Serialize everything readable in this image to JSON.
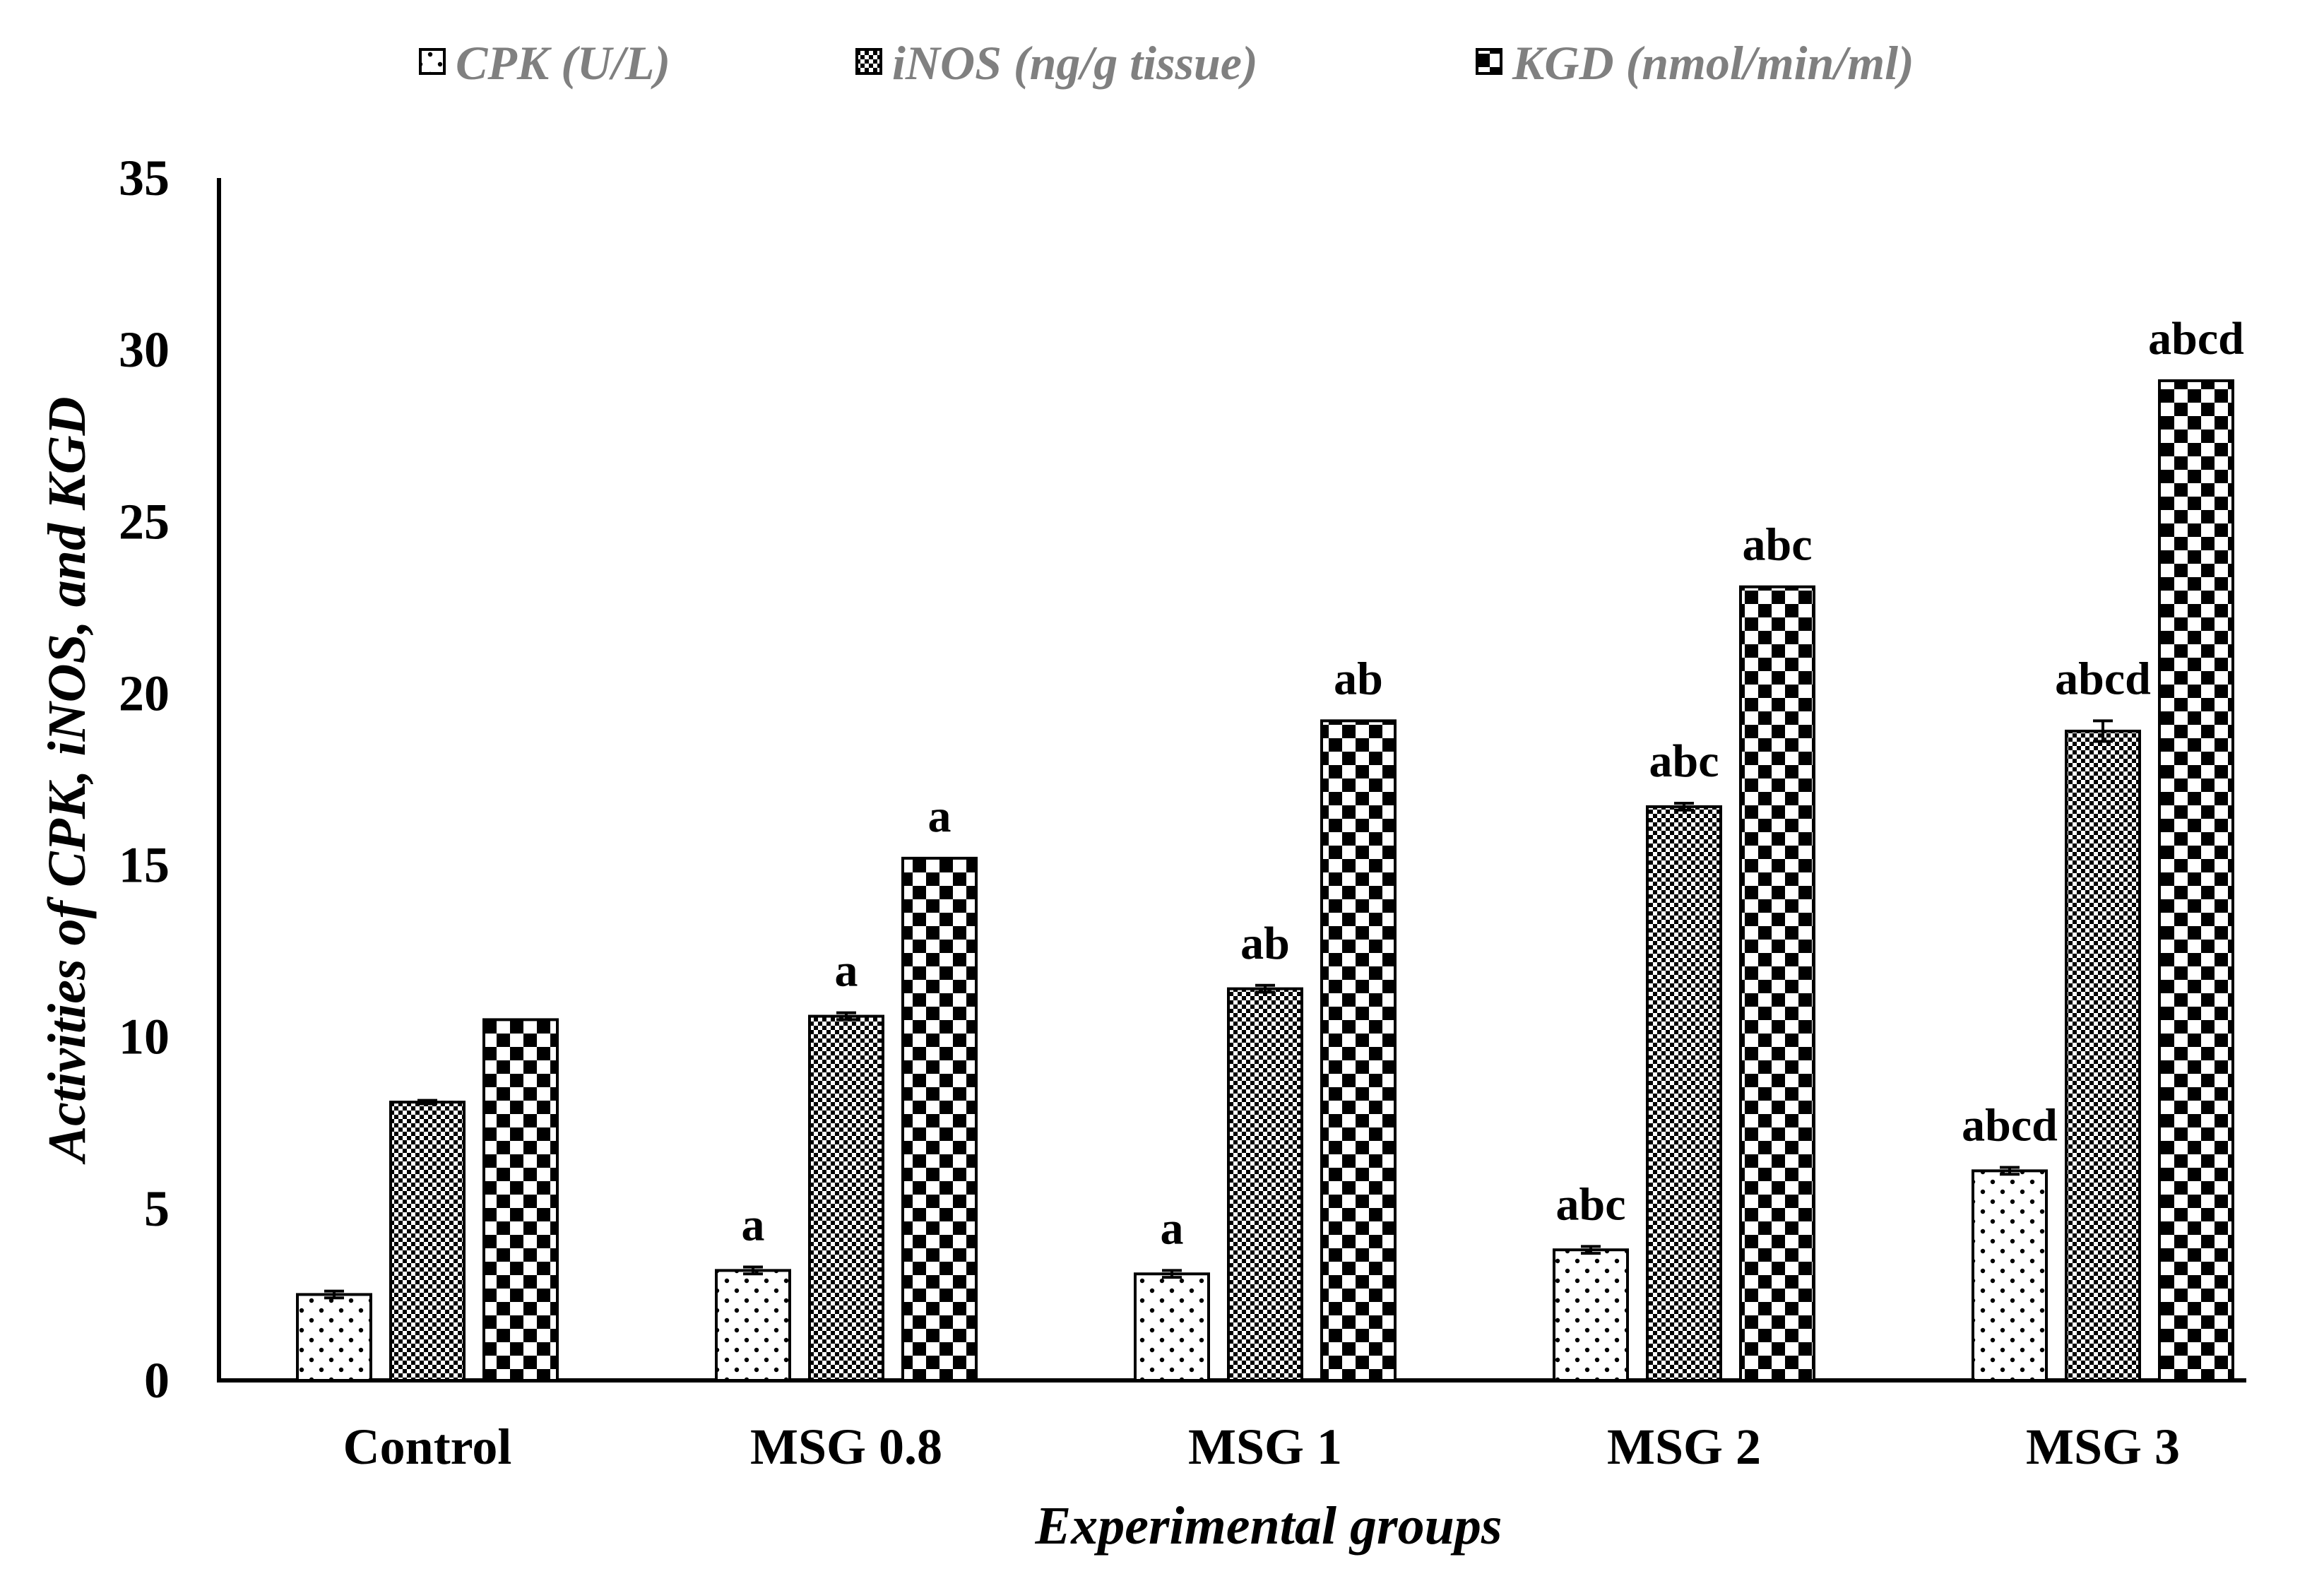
{
  "chart_data": {
    "type": "bar",
    "title": "",
    "xlabel": "Experimental groups",
    "ylabel": "Activities of CPK, iNOS, and KGD",
    "ylim": [
      0,
      35
    ],
    "yticks": [
      0,
      5,
      10,
      15,
      20,
      25,
      30,
      35
    ],
    "grid": false,
    "legend_position": "top",
    "categories": [
      "Control",
      "MSG 0.8",
      "MSG 1",
      "MSG 2",
      "MSG 3"
    ],
    "series": [
      {
        "name": "CPK (U/L)",
        "pattern": "dots",
        "values": [
          2.5,
          3.2,
          3.1,
          3.8,
          6.1
        ],
        "errors": [
          0.1,
          0.1,
          0.1,
          0.1,
          0.1
        ],
        "labels": [
          "",
          "a",
          "a",
          "abc",
          "abcd"
        ]
      },
      {
        "name": "iNOS (ng/g tissue)",
        "pattern": "fine-check",
        "values": [
          8.1,
          10.6,
          11.4,
          16.7,
          18.9
        ],
        "errors": [
          0.05,
          0.1,
          0.1,
          0.1,
          0.3
        ],
        "labels": [
          "",
          "a",
          "ab",
          "abc",
          "abcd"
        ]
      },
      {
        "name": "KGD (nmol/min/ml)",
        "pattern": "checker",
        "values": [
          10.5,
          15.2,
          19.2,
          23.1,
          29.1
        ],
        "errors": [
          0,
          0,
          0,
          0,
          0
        ],
        "labels": [
          "",
          "a",
          "ab",
          "abc",
          "abcd"
        ]
      }
    ]
  }
}
